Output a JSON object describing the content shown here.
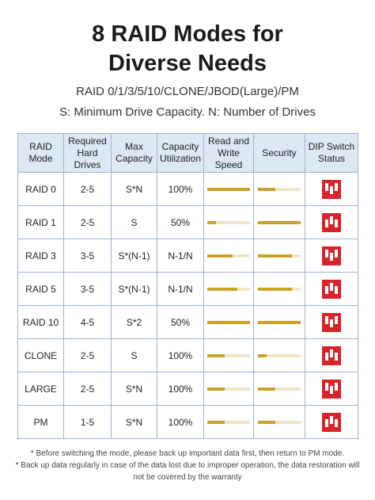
{
  "header": {
    "title_lines": [
      "8 RAID Modes for",
      "Diverse Needs"
    ],
    "subtitle_lines": [
      "RAID 0/1/3/5/10/CLONE/JBOD(Large)/PM",
      "S: Minimum Drive Capacity. N: Number of Drives"
    ]
  },
  "table": {
    "columns": [
      "RAID\nMode",
      "Required\nHard Drives",
      "Max\nCapacity",
      "Capacity\nUtilization",
      "Read and\nWrite Speed",
      "Security",
      "DIP Switch\nStatus"
    ],
    "level_range": [
      0,
      5
    ],
    "bar_color": "#c9a227",
    "rows": [
      {
        "mode": "RAID 0",
        "drives": "2-5",
        "capacity": "S*N",
        "utilization": "100%",
        "speed": 5,
        "security": 2
      },
      {
        "mode": "RAID 1",
        "drives": "2-5",
        "capacity": "S",
        "utilization": "50%",
        "speed": 1,
        "security": 5
      },
      {
        "mode": "RAID 3",
        "drives": "3-5",
        "capacity": "S*(N-1)",
        "utilization": "N-1/N",
        "speed": 3,
        "security": 4
      },
      {
        "mode": "RAID 5",
        "drives": "3-5",
        "capacity": "S*(N-1)",
        "utilization": "N-1/N",
        "speed": 3.5,
        "security": 4
      },
      {
        "mode": "RAID 10",
        "drives": "4-5",
        "capacity": "S*2",
        "utilization": "50%",
        "speed": 5,
        "security": 5
      },
      {
        "mode": "CLONE",
        "drives": "2-5",
        "capacity": "S",
        "utilization": "100%",
        "speed": 2,
        "security": 1
      },
      {
        "mode": "LARGE",
        "drives": "2-5",
        "capacity": "S*N",
        "utilization": "100%",
        "speed": 2,
        "security": 2
      },
      {
        "mode": "PM",
        "drives": "1-5",
        "capacity": "S*N",
        "utilization": "100%",
        "speed": 2,
        "security": 2
      }
    ]
  },
  "footnotes": [
    "* Before switching the mode, please back up important data first, then return to PM mode.",
    "* Back up data regularly in case of the data lost due to improper operation, the data restoration will",
    "not be covered by the warranty"
  ]
}
